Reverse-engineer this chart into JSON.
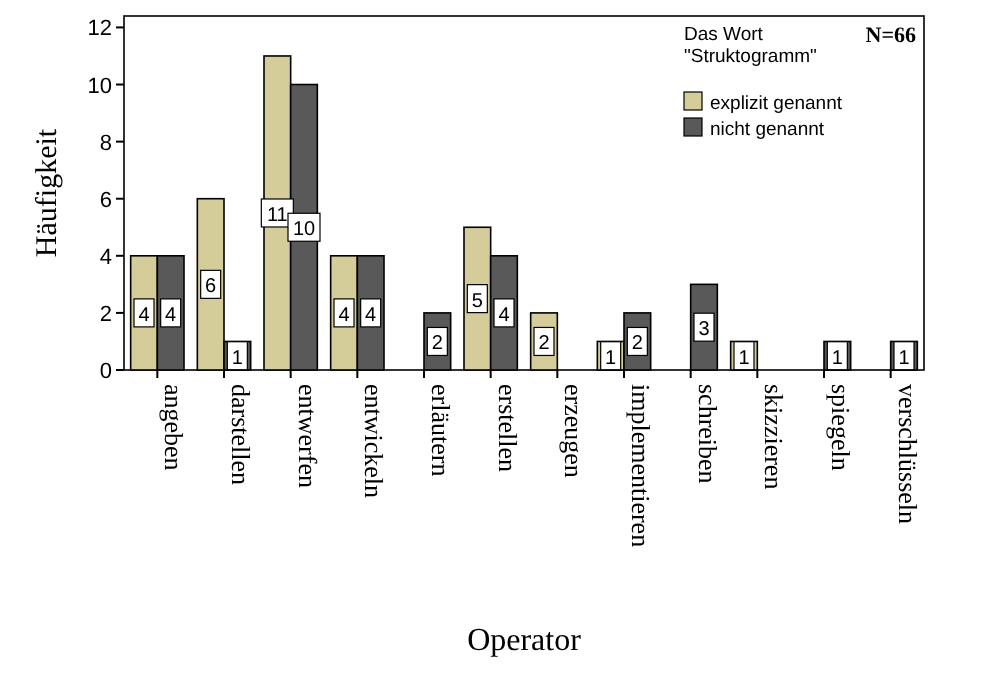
{
  "chart_data": {
    "type": "bar",
    "xlabel": "Operator",
    "ylabel": "Häufigkeit",
    "legend_title": "Das Wort\n\"Struktogramm\"",
    "annotations": [
      "N=66"
    ],
    "categories": [
      "angeben",
      "darstellen",
      "entwerfen",
      "entwickeln",
      "erläutern",
      "erstellen",
      "erzeugen",
      "implementieren",
      "schreiben",
      "skizzieren",
      "spiegeln",
      "verschlüsseln"
    ],
    "series": [
      {
        "name": "explizit genannt",
        "color": "#d4cd9a",
        "values": [
          4,
          6,
          11,
          4,
          null,
          5,
          2,
          1,
          null,
          1,
          null,
          null
        ]
      },
      {
        "name": "nicht genannt",
        "color": "#595959",
        "values": [
          4,
          1,
          10,
          4,
          2,
          4,
          null,
          2,
          3,
          null,
          1,
          1
        ]
      }
    ],
    "ylim": [
      0,
      12.4
    ],
    "yticks": [
      0,
      2,
      4,
      6,
      8,
      10,
      12
    ],
    "grid": false,
    "legend": "top right",
    "data_labels": true
  }
}
